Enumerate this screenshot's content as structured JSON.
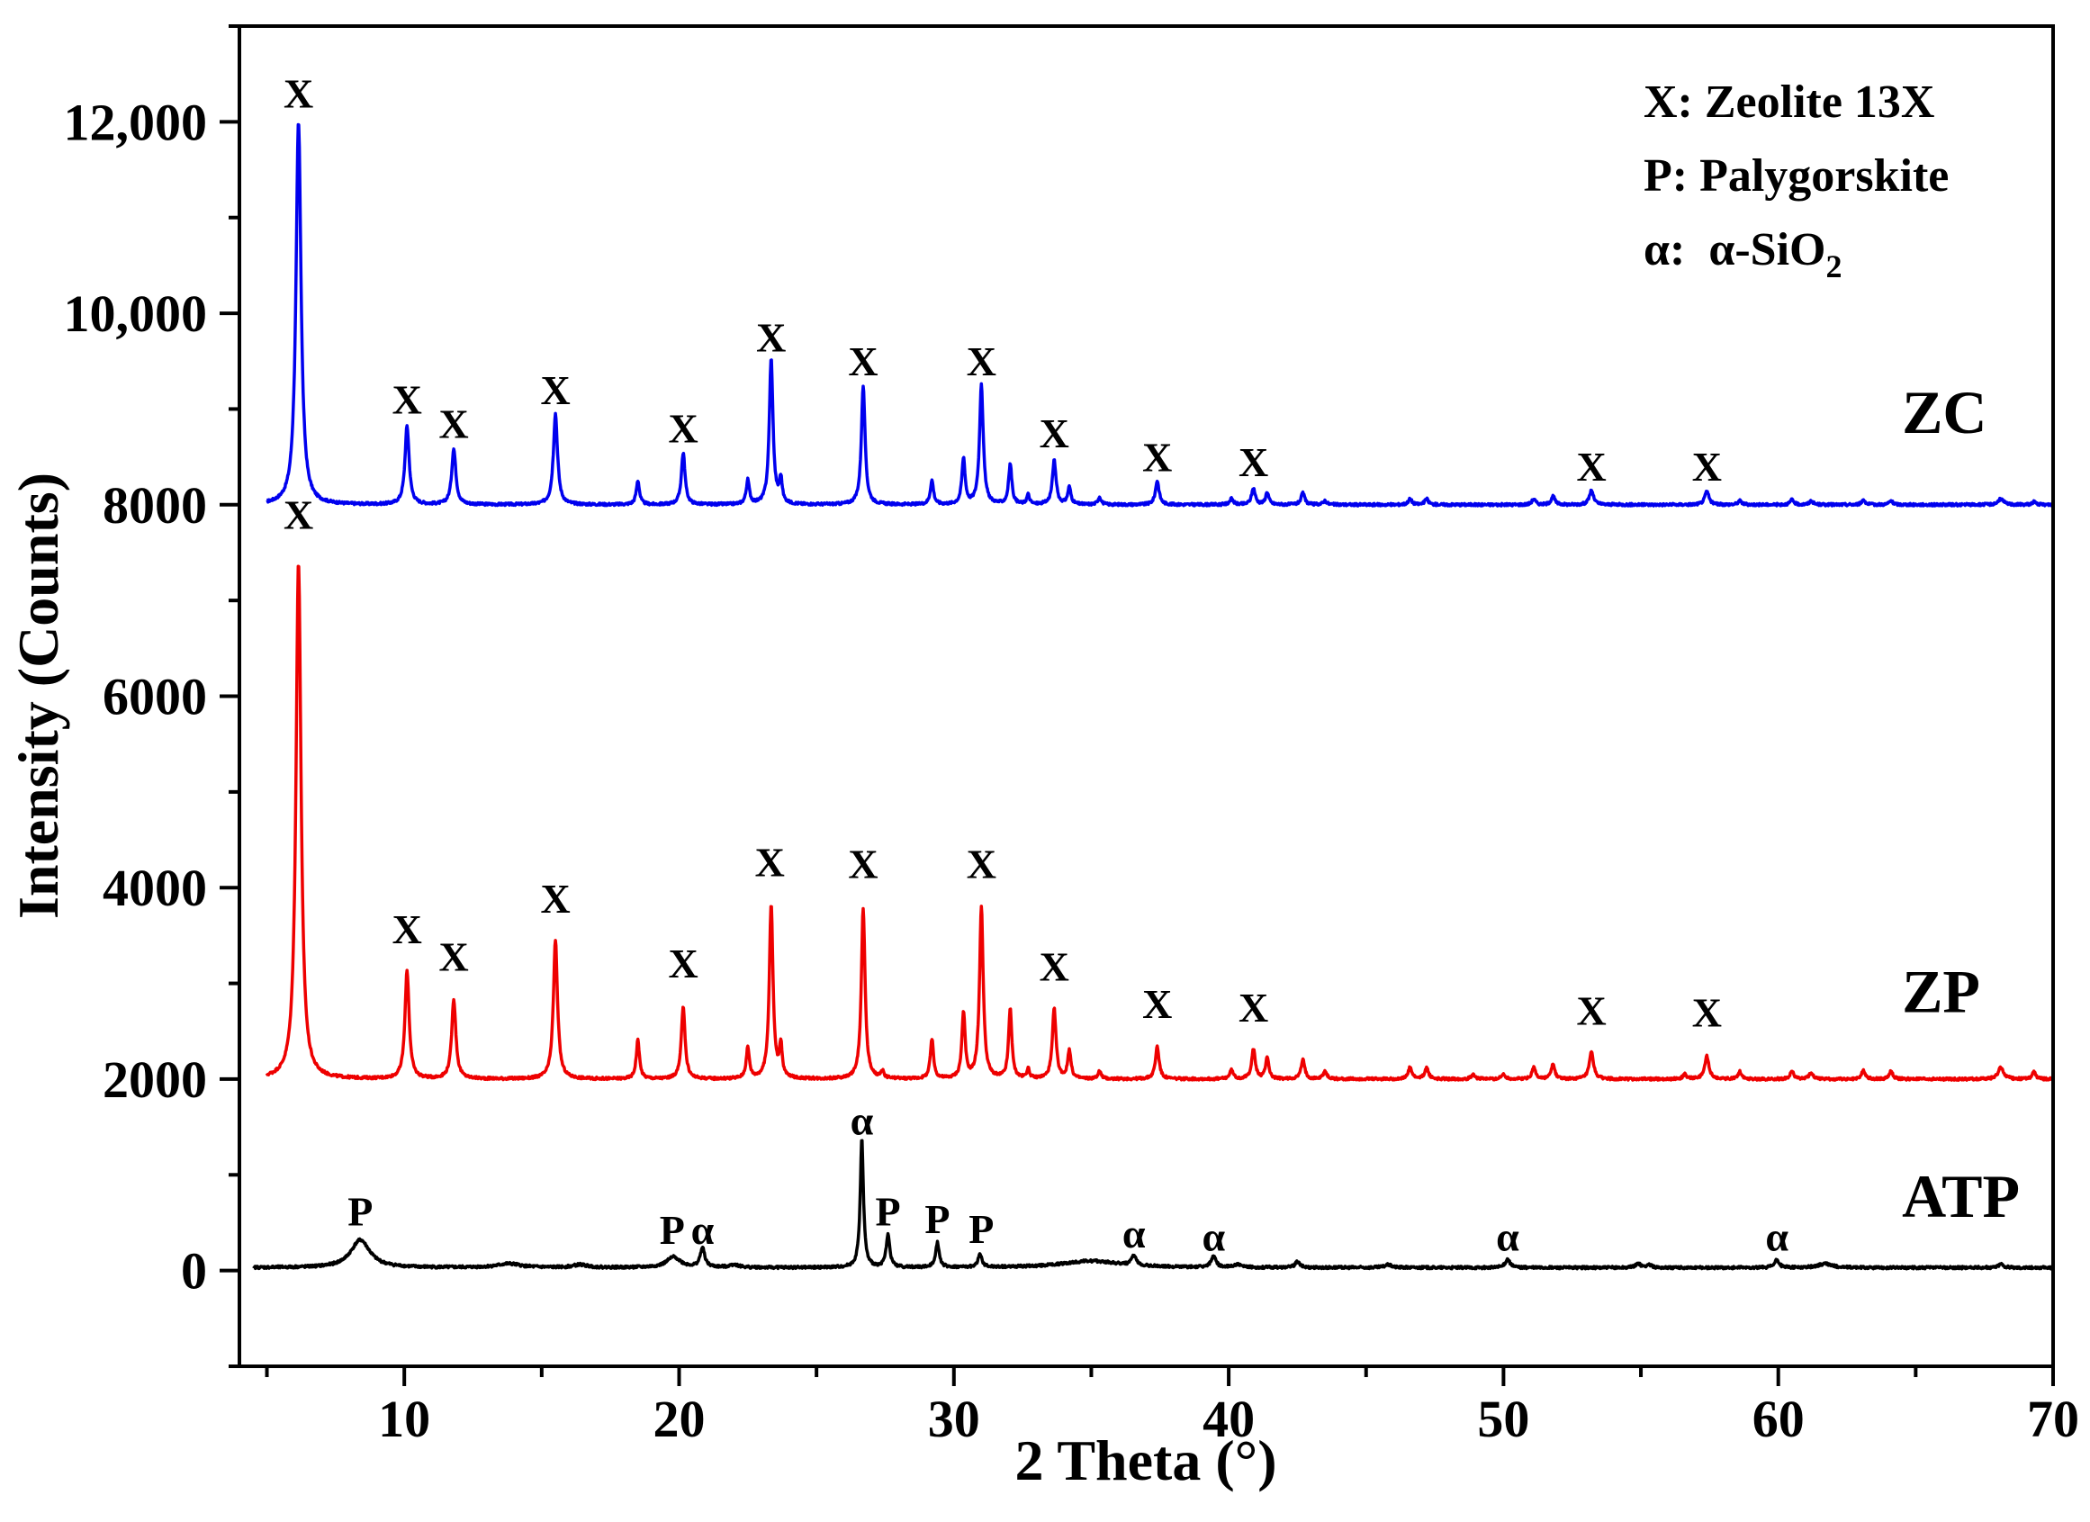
{
  "chart_data": {
    "type": "line",
    "xlabel": "2 Theta (°)",
    "ylabel": "Intensity (Counts)",
    "xlim": [
      4,
      70
    ],
    "ylim": [
      -1000,
      13000
    ],
    "x_ticks": [
      10,
      20,
      30,
      40,
      50,
      60,
      70
    ],
    "y_ticks": [
      0,
      2000,
      4000,
      6000,
      8000,
      10000,
      12000
    ],
    "y_tick_labels": [
      "0",
      "2000",
      "4000",
      "6000",
      "8000",
      "10,000",
      "12,000"
    ],
    "legend": {
      "position": "top-right",
      "entries": [
        "X: Zeolite 13X",
        "P: Palygorskite",
        "α:  α-SiO"
      ],
      "subscript": "2"
    },
    "series": [
      {
        "name": "ZC",
        "color": "#0000ee",
        "baseline": 8000,
        "start_x": 5,
        "peaks": [
          [
            6.15,
            4000,
            0.11
          ],
          [
            10.1,
            820,
            0.09
          ],
          [
            11.8,
            580,
            0.09
          ],
          [
            15.5,
            950,
            0.09
          ],
          [
            18.5,
            250,
            0.07
          ],
          [
            20.15,
            540,
            0.08
          ],
          [
            22.5,
            250,
            0.07
          ],
          [
            23.35,
            1520,
            0.08
          ],
          [
            23.7,
            250,
            0.06
          ],
          [
            26.7,
            1240,
            0.08
          ],
          [
            29.2,
            250,
            0.07
          ],
          [
            30.35,
            480,
            0.07
          ],
          [
            31.0,
            1260,
            0.08
          ],
          [
            32.05,
            420,
            0.07
          ],
          [
            32.7,
            100,
            0.06
          ],
          [
            33.65,
            460,
            0.08
          ],
          [
            34.2,
            180,
            0.07
          ],
          [
            35.3,
            80,
            0.07
          ],
          [
            37.4,
            250,
            0.08
          ],
          [
            40.1,
            60,
            0.08
          ],
          [
            40.9,
            170,
            0.08
          ],
          [
            41.4,
            130,
            0.07
          ],
          [
            42.7,
            120,
            0.08
          ],
          [
            43.5,
            40,
            0.08
          ],
          [
            46.6,
            60,
            0.08
          ],
          [
            47.2,
            60,
            0.08
          ],
          [
            51.1,
            60,
            0.08
          ],
          [
            51.8,
            90,
            0.08
          ],
          [
            53.2,
            150,
            0.09
          ],
          [
            57.4,
            140,
            0.09
          ],
          [
            58.6,
            40,
            0.08
          ],
          [
            60.5,
            50,
            0.08
          ],
          [
            61.2,
            40,
            0.08
          ],
          [
            63.1,
            50,
            0.08
          ],
          [
            64.1,
            40,
            0.08
          ],
          [
            68.1,
            60,
            0.12
          ],
          [
            69.3,
            30,
            0.08
          ]
        ],
        "labels": [
          {
            "text": "X",
            "x": 6.15,
            "y": 12150
          },
          {
            "text": "X",
            "x": 10.1,
            "y": 8950
          },
          {
            "text": "X",
            "x": 11.8,
            "y": 8700
          },
          {
            "text": "X",
            "x": 15.5,
            "y": 9050
          },
          {
            "text": "X",
            "x": 20.15,
            "y": 8650
          },
          {
            "text": "X",
            "x": 23.35,
            "y": 9600
          },
          {
            "text": "X",
            "x": 26.7,
            "y": 9350
          },
          {
            "text": "X",
            "x": 31.0,
            "y": 9350
          },
          {
            "text": "X",
            "x": 33.65,
            "y": 8600
          },
          {
            "text": "X",
            "x": 37.4,
            "y": 8350
          },
          {
            "text": "X",
            "x": 40.9,
            "y": 8300
          },
          {
            "text": "X",
            "x": 53.2,
            "y": 8250
          },
          {
            "text": "X",
            "x": 57.4,
            "y": 8250
          }
        ],
        "series_label": "ZC",
        "series_label_pos": [
          64.5,
          8750
        ]
      },
      {
        "name": "ZP",
        "color": "#ee0000",
        "baseline": 2000,
        "start_x": 5,
        "peaks": [
          [
            6.15,
            5400,
            0.11
          ],
          [
            10.1,
            1130,
            0.09
          ],
          [
            11.8,
            830,
            0.09
          ],
          [
            15.5,
            1450,
            0.09
          ],
          [
            18.5,
            410,
            0.07
          ],
          [
            20.15,
            760,
            0.08
          ],
          [
            22.5,
            320,
            0.07
          ],
          [
            23.35,
            1820,
            0.08
          ],
          [
            23.7,
            330,
            0.06
          ],
          [
            26.7,
            1790,
            0.08
          ],
          [
            27.4,
            70,
            0.06
          ],
          [
            29.2,
            410,
            0.07
          ],
          [
            30.35,
            690,
            0.07
          ],
          [
            31.0,
            1800,
            0.08
          ],
          [
            32.05,
            730,
            0.07
          ],
          [
            32.7,
            100,
            0.06
          ],
          [
            33.65,
            730,
            0.08
          ],
          [
            34.2,
            300,
            0.07
          ],
          [
            35.3,
            80,
            0.07
          ],
          [
            37.4,
            340,
            0.08
          ],
          [
            40.1,
            90,
            0.08
          ],
          [
            40.9,
            310,
            0.08
          ],
          [
            41.4,
            230,
            0.07
          ],
          [
            42.7,
            200,
            0.08
          ],
          [
            43.5,
            80,
            0.08
          ],
          [
            46.6,
            120,
            0.08
          ],
          [
            47.2,
            120,
            0.08
          ],
          [
            48.9,
            50,
            0.08
          ],
          [
            50.0,
            50,
            0.08
          ],
          [
            51.1,
            120,
            0.08
          ],
          [
            51.8,
            150,
            0.08
          ],
          [
            53.2,
            280,
            0.09
          ],
          [
            56.6,
            50,
            0.08
          ],
          [
            57.4,
            240,
            0.09
          ],
          [
            58.6,
            80,
            0.08
          ],
          [
            60.5,
            80,
            0.08
          ],
          [
            61.2,
            70,
            0.08
          ],
          [
            63.1,
            90,
            0.08
          ],
          [
            64.1,
            80,
            0.08
          ],
          [
            68.1,
            120,
            0.12
          ],
          [
            69.3,
            70,
            0.08
          ]
        ],
        "labels": [
          {
            "text": "X",
            "x": 6.15,
            "y": 7750
          },
          {
            "text": "X",
            "x": 10.1,
            "y": 3420
          },
          {
            "text": "X",
            "x": 11.8,
            "y": 3130
          },
          {
            "text": "X",
            "x": 15.5,
            "y": 3740
          },
          {
            "text": "X",
            "x": 20.15,
            "y": 3060
          },
          {
            "text": "X",
            "x": 23.3,
            "y": 4120
          },
          {
            "text": "X",
            "x": 26.7,
            "y": 4100
          },
          {
            "text": "X",
            "x": 31.0,
            "y": 4100
          },
          {
            "text": "X",
            "x": 33.65,
            "y": 3030
          },
          {
            "text": "X",
            "x": 37.4,
            "y": 2640
          },
          {
            "text": "X",
            "x": 40.9,
            "y": 2600
          },
          {
            "text": "X",
            "x": 53.2,
            "y": 2570
          },
          {
            "text": "X",
            "x": 57.4,
            "y": 2550
          }
        ],
        "series_label": "ZP",
        "series_label_pos": [
          64.5,
          2700
        ]
      },
      {
        "name": "ATP",
        "color": "#000000",
        "baseline": 30,
        "start_x": 4.5,
        "peaks": [
          [
            8.4,
            290,
            0.42
          ],
          [
            13.8,
            40,
            0.5
          ],
          [
            16.4,
            30,
            0.3
          ],
          [
            19.8,
            110,
            0.3
          ],
          [
            20.85,
            200,
            0.1
          ],
          [
            22.0,
            30,
            0.2
          ],
          [
            26.65,
            1340,
            0.07
          ],
          [
            27.6,
            340,
            0.08
          ],
          [
            29.4,
            260,
            0.08
          ],
          [
            30.95,
            140,
            0.08
          ],
          [
            35.0,
            70,
            1.3
          ],
          [
            36.55,
            100,
            0.1
          ],
          [
            39.45,
            120,
            0.1
          ],
          [
            40.3,
            30,
            0.15
          ],
          [
            42.5,
            60,
            0.1
          ],
          [
            45.8,
            30,
            0.15
          ],
          [
            50.15,
            90,
            0.1
          ],
          [
            54.9,
            40,
            0.12
          ],
          [
            55.3,
            30,
            0.1
          ],
          [
            59.95,
            80,
            0.1
          ],
          [
            61.7,
            40,
            0.3
          ],
          [
            68.1,
            40,
            0.1
          ]
        ],
        "labels": [
          {
            "text": "P",
            "x": 8.4,
            "y": 470
          },
          {
            "text": "P",
            "x": 19.75,
            "y": 280
          },
          {
            "text": "α",
            "x": 20.85,
            "y": 280
          },
          {
            "text": "α",
            "x": 26.65,
            "y": 1420
          },
          {
            "text": "P",
            "x": 27.6,
            "y": 470
          },
          {
            "text": "P",
            "x": 29.4,
            "y": 390
          },
          {
            "text": "P",
            "x": 31.0,
            "y": 290
          },
          {
            "text": "α",
            "x": 36.55,
            "y": 240
          },
          {
            "text": "α",
            "x": 39.45,
            "y": 210
          },
          {
            "text": "α",
            "x": 50.15,
            "y": 210
          },
          {
            "text": "α",
            "x": 59.95,
            "y": 210
          }
        ],
        "series_label": "ATP",
        "series_label_pos": [
          64.5,
          560
        ]
      }
    ]
  }
}
